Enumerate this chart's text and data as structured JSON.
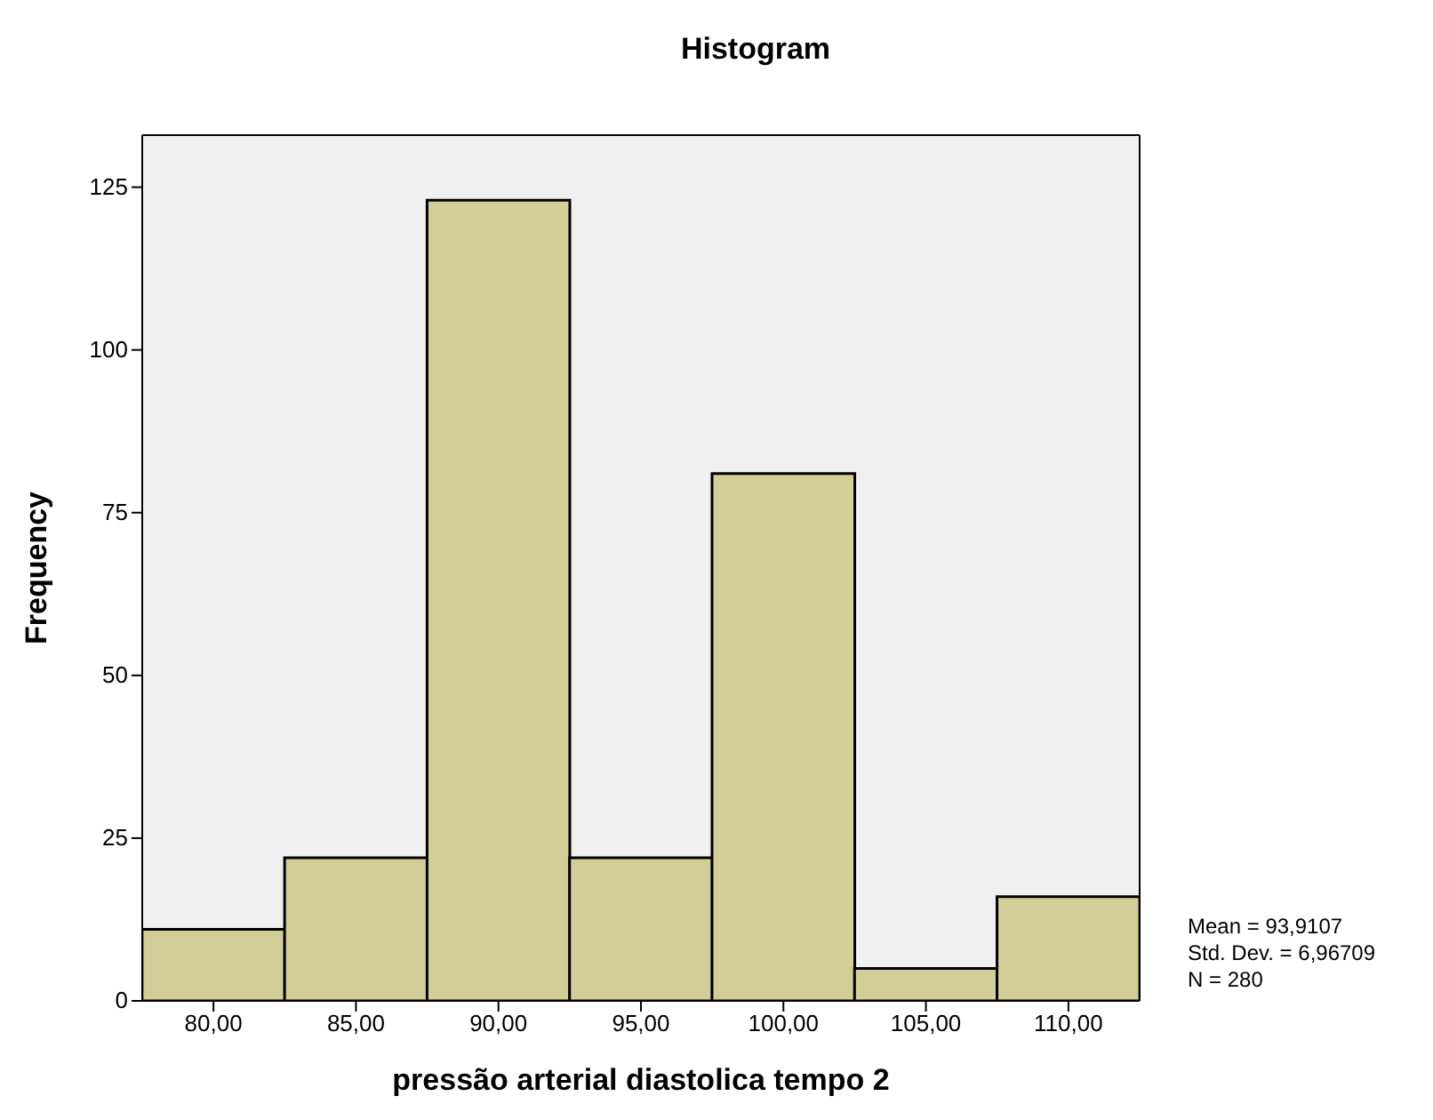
{
  "chart_data": {
    "type": "histogram",
    "title": "Histogram",
    "xlabel": "pressão arterial diastolica tempo 2",
    "ylabel": "Frequency",
    "bins": [
      77.5,
      82.5,
      87.5,
      92.5,
      97.5,
      102.5,
      107.5,
      112.5
    ],
    "values": [
      11,
      22,
      123,
      22,
      81,
      5,
      16
    ],
    "color": "#d3ce97",
    "xlim": [
      77.5,
      112.5
    ],
    "xticks": [
      {
        "value": 80,
        "label": "80,00"
      },
      {
        "value": 85,
        "label": "85,00"
      },
      {
        "value": 90,
        "label": "90,00"
      },
      {
        "value": 95,
        "label": "95,00"
      },
      {
        "value": 100,
        "label": "100,00"
      },
      {
        "value": 105,
        "label": "105,00"
      },
      {
        "value": 110,
        "label": "110,00"
      }
    ],
    "ylim": [
      0,
      133
    ],
    "yticks": [
      0,
      25,
      50,
      75,
      100,
      125
    ],
    "annotations": [
      "Mean = 93,9107",
      "Std. Dev. = 6,96709",
      "N = 280"
    ]
  }
}
